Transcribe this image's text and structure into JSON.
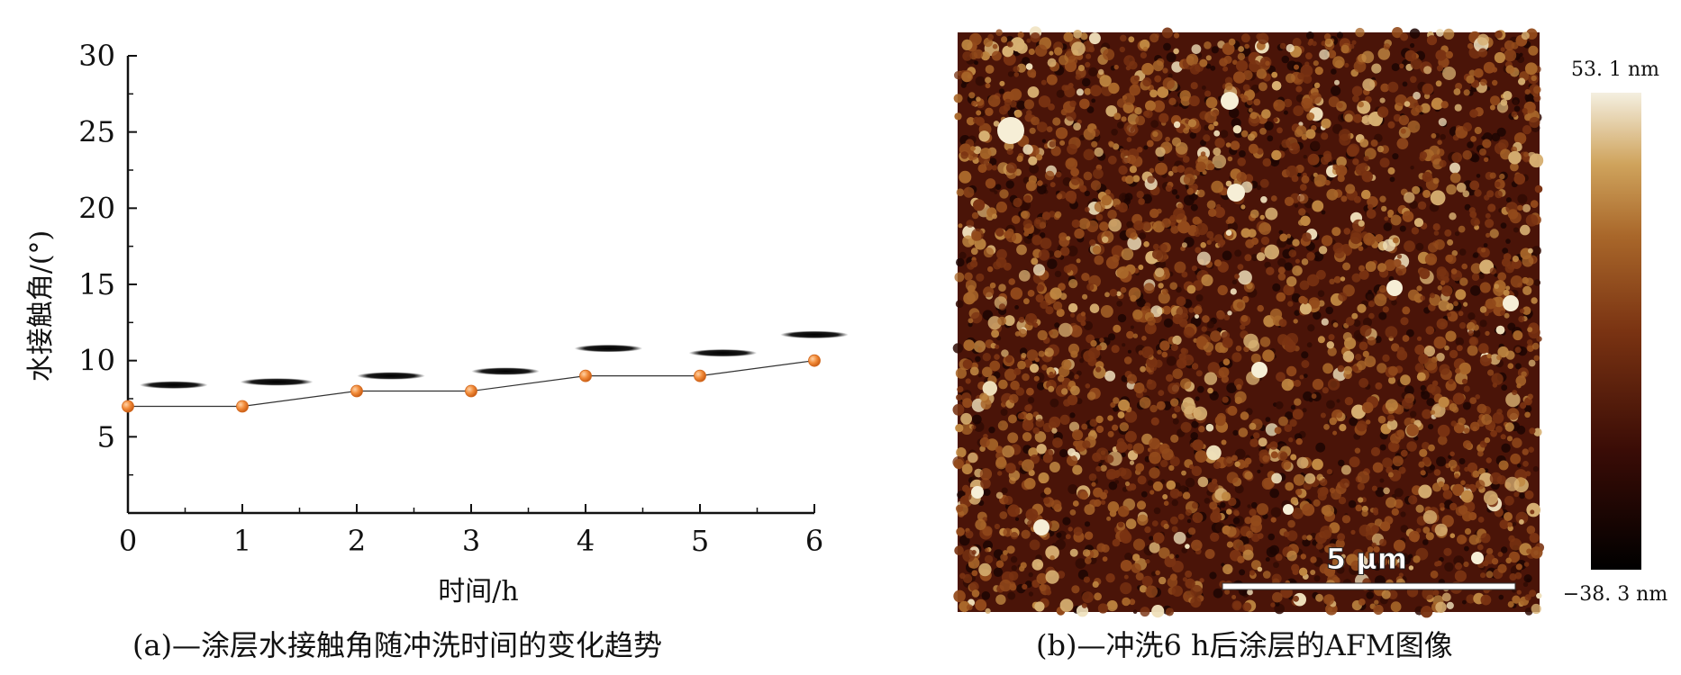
{
  "chart_data": [
    {
      "type": "line",
      "panel": "(a)",
      "caption": "(a)—涂层水接触角随冲洗时间的变化趋势",
      "xlabel": "时间/h",
      "ylabel": "水接触角/(°)",
      "x": [
        0,
        1,
        2,
        3,
        4,
        5,
        6
      ],
      "xlim": [
        0,
        6
      ],
      "ylim": [
        0,
        30
      ],
      "x_ticks": [
        "0",
        "1",
        "2",
        "3",
        "4",
        "5",
        "6"
      ],
      "y_ticks": [
        "5",
        "10",
        "15",
        "20",
        "25",
        "30"
      ],
      "series": [
        {
          "values": [
            7,
            7,
            8,
            8,
            9,
            9,
            10
          ]
        }
      ],
      "droplet_icons_shown": true,
      "grid": false,
      "colors": {
        "marker": "#f08a35",
        "line": "#333333",
        "axis": "#111111",
        "droplet": "#1a1a1a"
      }
    },
    {
      "type": "heatmap",
      "panel": "(b)",
      "caption": "(b)—冲洗6 h后涂层的AFM图像",
      "scale_bar_label": "5 μm",
      "colorbar_max_label": "53. 1 nm",
      "colorbar_min_label": "−38. 3 nm",
      "colorbar_range_nm": [
        -38.3,
        53.1
      ],
      "colormap": [
        "#000000",
        "#3a0c06",
        "#7a3312",
        "#a9672a",
        "#cfa35c",
        "#f4efe0"
      ]
    }
  ]
}
